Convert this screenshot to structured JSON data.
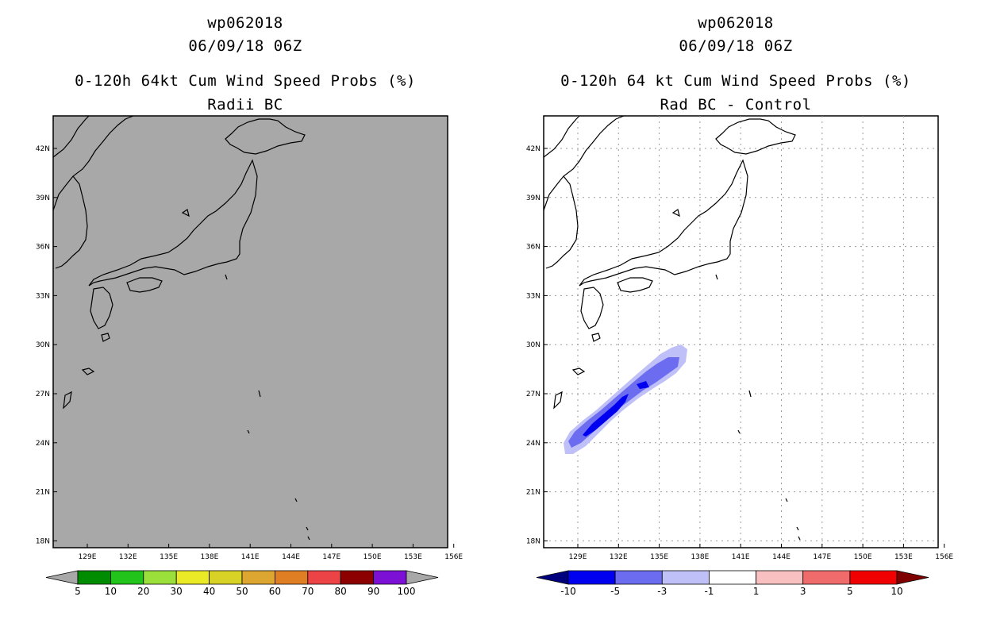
{
  "left_panel": {
    "storm_id": "wp062018",
    "datetime": "06/09/18 06Z",
    "product": "0-120h 64kt Cum Wind Speed Probs (%)",
    "subtitle": "Radii BC",
    "map_fill_color": "#a8a8a8",
    "colorbar": {
      "labels": [
        "5",
        "10",
        "20",
        "30",
        "40",
        "50",
        "60",
        "70",
        "80",
        "90",
        "100"
      ],
      "colors": [
        "#a8a8a8",
        "#008c00",
        "#22c41c",
        "#9be03a",
        "#eaea26",
        "#d8d226",
        "#dca631",
        "#e07e24",
        "#ec4446",
        "#8c0000",
        "#7c10d4",
        "#a8a8a8"
      ]
    }
  },
  "right_panel": {
    "storm_id": "wp062018",
    "datetime": "06/09/18 06Z",
    "product": "0-120h 64 kt Cum Wind Speed Probs (%)",
    "subtitle": "Rad BC - Control",
    "map_fill_color": "#ffffff",
    "colorbar": {
      "labels": [
        "-10",
        "-5",
        "-3",
        "-1",
        "1",
        "3",
        "5",
        "10"
      ],
      "colors": [
        "#00007e",
        "#0000f0",
        "#6c6cf0",
        "#c0c0f8",
        "#ffffff",
        "#f8c0c0",
        "#f06c6c",
        "#f00000",
        "#7e0000"
      ]
    }
  },
  "axes": {
    "lat_labels": [
      "42N",
      "39N",
      "36N",
      "33N",
      "30N",
      "27N",
      "24N",
      "21N",
      "18N"
    ],
    "lon_labels": [
      "129E",
      "132E",
      "135E",
      "138E",
      "141E",
      "144E",
      "147E",
      "150E",
      "153E",
      "156E"
    ]
  }
}
